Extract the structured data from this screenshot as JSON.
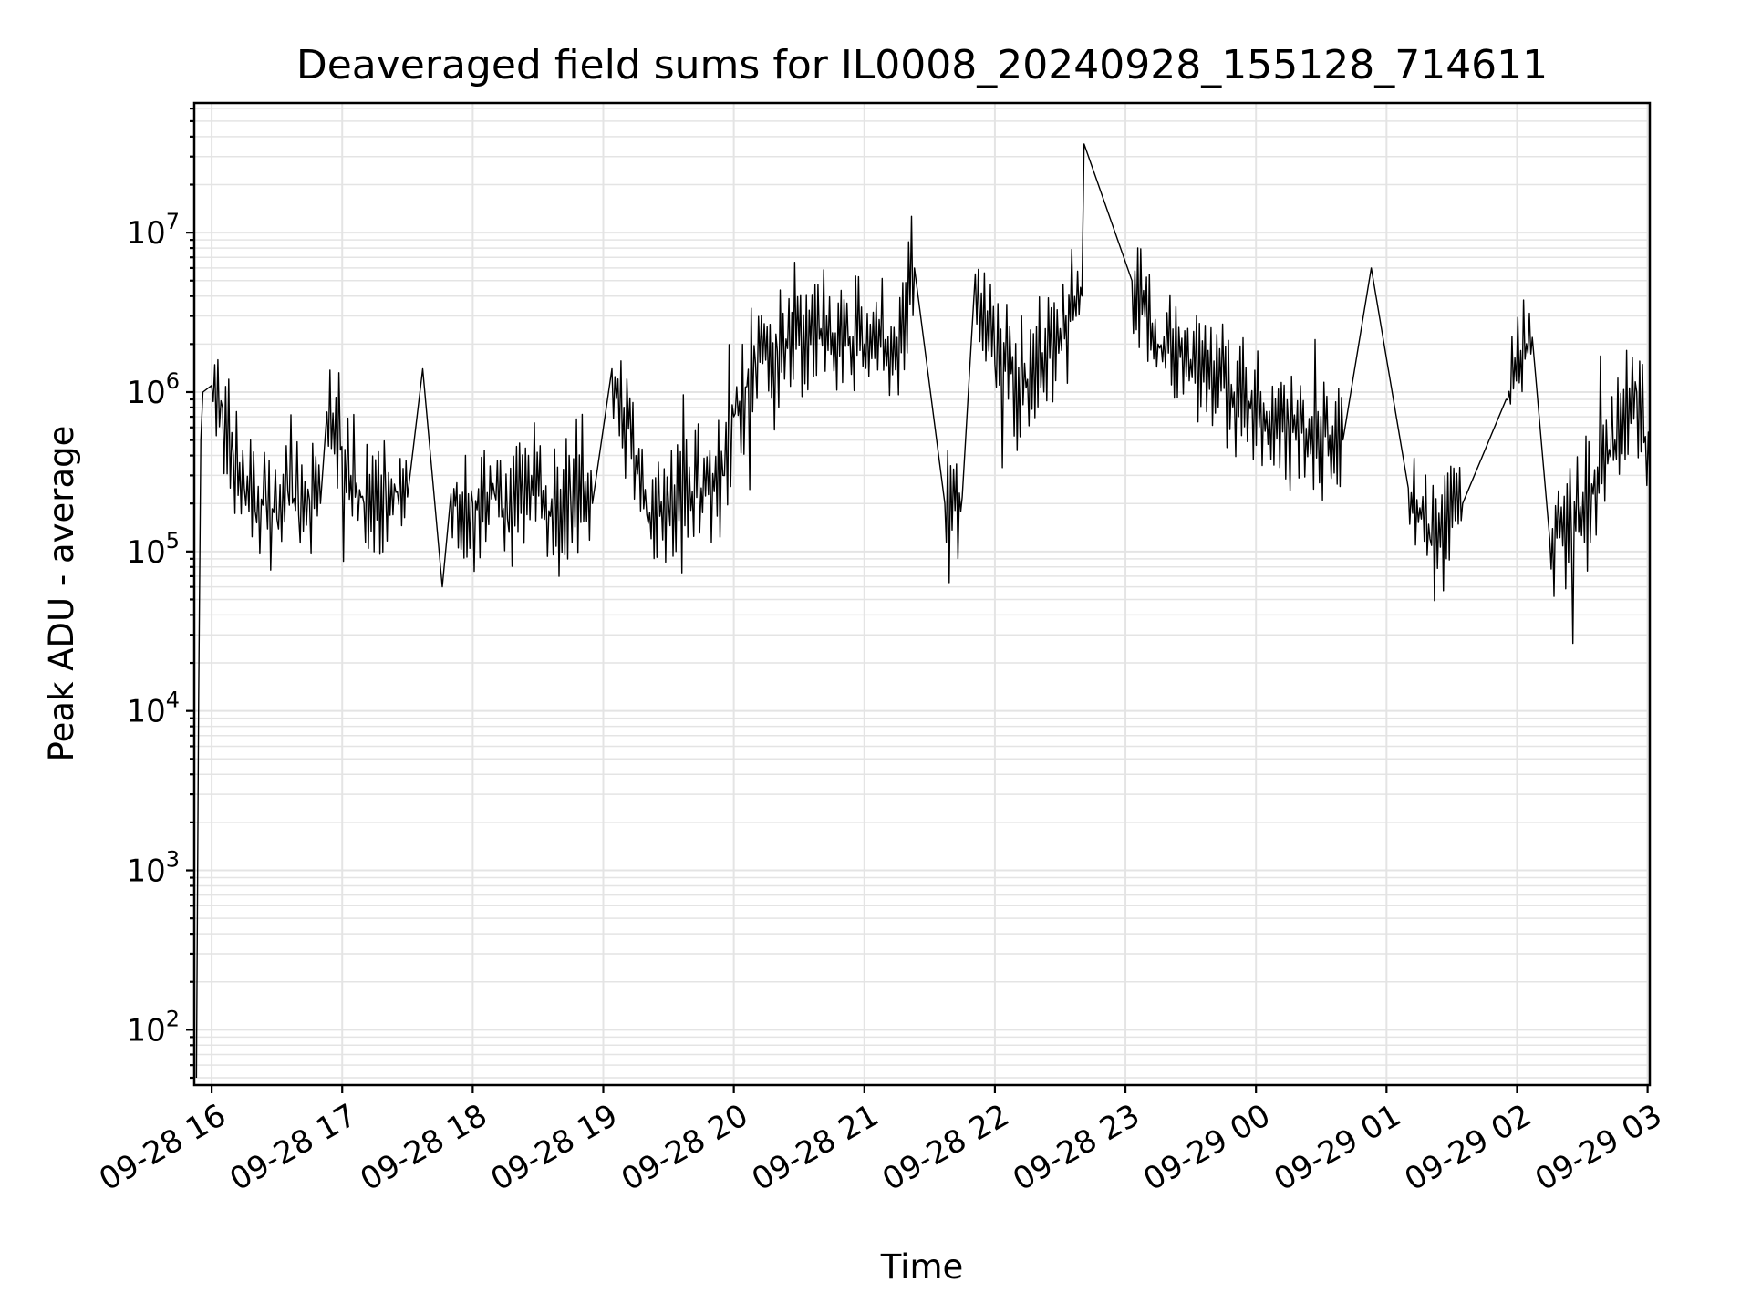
{
  "chart_data": {
    "type": "line",
    "title": "Deaveraged field sums for IL0008_20240928_155128_714611",
    "xlabel": "Time",
    "ylabel": "Peak ADU - average",
    "yscale": "log",
    "xlim": [
      "2024-09-28 15:52",
      "2024-09-29 03:01"
    ],
    "ylim": [
      45,
      65000000
    ],
    "grid": "on (major and minor)",
    "x_ticks": [
      {
        "value": "2024-09-28 16:00",
        "label": "09-28 16"
      },
      {
        "value": "2024-09-28 17:00",
        "label": "09-28 17"
      },
      {
        "value": "2024-09-28 18:00",
        "label": "09-28 18"
      },
      {
        "value": "2024-09-28 19:00",
        "label": "09-28 19"
      },
      {
        "value": "2024-09-28 20:00",
        "label": "09-28 20"
      },
      {
        "value": "2024-09-28 21:00",
        "label": "09-28 21"
      },
      {
        "value": "2024-09-28 22:00",
        "label": "09-28 22"
      },
      {
        "value": "2024-09-28 23:00",
        "label": "09-28 23"
      },
      {
        "value": "2024-09-29 00:00",
        "label": "09-29 00"
      },
      {
        "value": "2024-09-29 01:00",
        "label": "09-29 01"
      },
      {
        "value": "2024-09-29 02:00",
        "label": "09-29 02"
      },
      {
        "value": "2024-09-29 03:00",
        "label": "09-29 03"
      }
    ],
    "y_ticks": [
      {
        "value": 100,
        "base": "10",
        "exp": "2"
      },
      {
        "value": 1000,
        "base": "10",
        "exp": "3"
      },
      {
        "value": 10000,
        "base": "10",
        "exp": "4"
      },
      {
        "value": 100000,
        "base": "10",
        "exp": "5"
      },
      {
        "value": 1000000,
        "base": "10",
        "exp": "6"
      },
      {
        "value": 10000000,
        "base": "10",
        "exp": "7"
      }
    ],
    "series_color": "#000000",
    "series": [
      {
        "points": [
          [
            "2024-09-28 15:53",
            50
          ],
          [
            "2024-09-28 15:54",
            12000
          ],
          [
            "2024-09-28 15:55",
            500000
          ],
          [
            "2024-09-28 15:56",
            1000000
          ],
          [
            "2024-09-28 16:00",
            1100000
          ],
          [
            "2024-09-28 16:05",
            800000
          ],
          [
            "2024-09-28 16:10",
            400000
          ],
          [
            "2024-09-28 16:15",
            250000
          ],
          [
            "2024-09-28 16:20",
            180000
          ],
          [
            "2024-09-28 16:25",
            220000
          ],
          [
            "2024-09-28 16:30",
            160000
          ],
          [
            "2024-09-28 16:35",
            240000
          ],
          [
            "2024-09-28 16:40",
            170000
          ],
          [
            "2024-09-28 16:45",
            210000
          ],
          [
            "2024-09-28 16:50",
            200000
          ],
          [
            "2024-09-28 16:53",
            750000
          ],
          [
            "2024-09-28 17:04",
            300000
          ],
          [
            "2024-09-28 17:10",
            200000
          ],
          [
            "2024-09-28 17:20",
            250000
          ],
          [
            "2024-09-28 17:30",
            220000
          ],
          [
            "2024-09-28 17:37",
            1400000
          ],
          [
            "2024-09-28 17:46",
            60000
          ],
          [
            "2024-09-28 17:50",
            230000
          ],
          [
            "2024-09-28 18:00",
            200000
          ],
          [
            "2024-09-28 18:10",
            230000
          ],
          [
            "2024-09-28 18:16",
            160000
          ],
          [
            "2024-09-28 18:27",
            300000
          ],
          [
            "2024-09-28 18:35",
            180000
          ],
          [
            "2024-09-28 18:45",
            220000
          ],
          [
            "2024-09-28 18:55",
            200000
          ],
          [
            "2024-09-28 19:04",
            1400000
          ],
          [
            "2024-09-28 19:15",
            400000
          ],
          [
            "2024-09-28 19:20",
            170000
          ],
          [
            "2024-09-28 19:30",
            200000
          ],
          [
            "2024-09-28 19:45",
            250000
          ],
          [
            "2024-09-28 19:55",
            300000
          ],
          [
            "2024-09-28 20:00",
            700000
          ],
          [
            "2024-09-28 20:10",
            1500000
          ],
          [
            "2024-09-28 20:20",
            1800000
          ],
          [
            "2024-09-28 20:40",
            2500000
          ],
          [
            "2024-09-28 21:00",
            2000000
          ],
          [
            "2024-09-28 21:15",
            2200000
          ],
          [
            "2024-09-28 21:23",
            6000000
          ],
          [
            "2024-09-28 21:37",
            200000
          ],
          [
            "2024-09-28 21:45",
            220000
          ],
          [
            "2024-09-28 21:51",
            5500000
          ],
          [
            "2024-09-28 22:00",
            1500000
          ],
          [
            "2024-09-28 22:15",
            1200000
          ],
          [
            "2024-09-28 22:30",
            2500000
          ],
          [
            "2024-09-28 22:40",
            4000000
          ],
          [
            "2024-09-28 22:41",
            36000000
          ],
          [
            "2024-09-28 23:03",
            5000000
          ],
          [
            "2024-09-28 23:15",
            2000000
          ],
          [
            "2024-09-28 23:30",
            1600000
          ],
          [
            "2024-09-28 23:50",
            1000000
          ],
          [
            "2024-09-29 00:15",
            600000
          ],
          [
            "2024-09-29 00:40",
            500000
          ],
          [
            "2024-09-29 00:53",
            6000000
          ],
          [
            "2024-09-29 01:10",
            250000
          ],
          [
            "2024-09-29 01:20",
            120000
          ],
          [
            "2024-09-29 01:35",
            200000
          ],
          [
            "2024-09-29 01:55",
            900000
          ],
          [
            "2024-09-29 02:07",
            2200000
          ],
          [
            "2024-09-29 02:15",
            120000
          ],
          [
            "2024-09-29 02:25",
            130000
          ],
          [
            "2024-09-29 02:45",
            500000
          ],
          [
            "2024-09-29 02:55",
            1000000
          ],
          [
            "2024-09-29 03:01",
            300000
          ]
        ]
      }
    ]
  }
}
